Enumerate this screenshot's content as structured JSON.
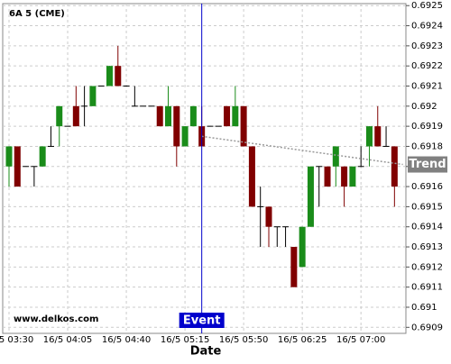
{
  "chart_data": {
    "type": "candlestick",
    "title": "6A 5 (CME)",
    "watermark": "www.delkos.com",
    "x_label": "Date",
    "categories": [
      "16/5 03:30",
      null,
      null,
      null,
      null,
      null,
      null,
      "16/5 04:05",
      null,
      null,
      null,
      null,
      null,
      null,
      "16/5 04:40",
      null,
      null,
      null,
      null,
      null,
      null,
      "16/5 05:15",
      null,
      null,
      null,
      null,
      null,
      null,
      "16/5 05:50",
      null,
      null,
      null,
      null,
      null,
      null,
      "16/5 06:25",
      null,
      null,
      null,
      null,
      null,
      null,
      "16/5 07:00",
      null,
      null,
      null,
      null
    ],
    "open": [
      0.6917,
      0.6918,
      0.6917,
      0.6917,
      0.6917,
      0.6918,
      0.6919,
      0.6919,
      0.692,
      0.692,
      0.692,
      0.6921,
      0.6921,
      0.6922,
      0.6921,
      0.692,
      0.692,
      0.692,
      0.692,
      0.6919,
      0.692,
      0.6918,
      0.6919,
      0.6919,
      0.6919,
      0.6919,
      0.692,
      0.6919,
      0.692,
      0.6918,
      0.6915,
      0.6915,
      0.6914,
      0.6914,
      0.6913,
      0.6912,
      0.6914,
      0.6917,
      0.6917,
      0.6917,
      0.6917,
      0.6916,
      0.6917,
      0.6918,
      0.6919,
      0.6918,
      0.6918
    ],
    "high": [
      0.6918,
      0.6918,
      0.6917,
      0.6917,
      0.6918,
      0.6919,
      0.692,
      0.6919,
      0.6921,
      0.6921,
      0.6921,
      0.6921,
      0.6922,
      0.6923,
      0.6921,
      0.6921,
      0.692,
      0.692,
      0.692,
      0.6921,
      0.692,
      0.6919,
      0.692,
      0.692,
      0.6919,
      0.6919,
      0.692,
      0.6921,
      0.692,
      0.6918,
      0.6916,
      0.6915,
      0.6914,
      0.6914,
      0.6913,
      0.6914,
      0.6917,
      0.6917,
      0.6917,
      0.6918,
      0.6917,
      0.6917,
      0.6918,
      0.6919,
      0.692,
      0.6919,
      0.6918
    ],
    "low": [
      0.6916,
      0.6916,
      0.6917,
      0.6916,
      0.6917,
      0.6918,
      0.6918,
      0.6919,
      0.6919,
      0.6919,
      0.692,
      0.6921,
      0.6921,
      0.6921,
      0.6921,
      0.692,
      0.692,
      0.692,
      0.6919,
      0.6919,
      0.6917,
      0.6918,
      0.6919,
      0.6918,
      0.6919,
      0.6919,
      0.6919,
      0.6919,
      0.6918,
      0.6915,
      0.6913,
      0.6913,
      0.6913,
      0.6913,
      0.6911,
      0.6912,
      0.6914,
      0.6915,
      0.6916,
      0.6916,
      0.6915,
      0.6916,
      0.6917,
      0.6917,
      0.6918,
      0.6918,
      0.6915
    ],
    "close": [
      0.6918,
      0.6916,
      0.6917,
      0.6917,
      0.6918,
      0.6918,
      0.692,
      0.6919,
      0.6919,
      0.692,
      0.6921,
      0.6921,
      0.6922,
      0.6921,
      0.6921,
      0.692,
      0.692,
      0.692,
      0.6919,
      0.692,
      0.6918,
      0.6919,
      0.692,
      0.6918,
      0.6919,
      0.6919,
      0.6919,
      0.692,
      0.6918,
      0.6915,
      0.6915,
      0.6914,
      0.6914,
      0.6914,
      0.6911,
      0.6914,
      0.6917,
      0.6917,
      0.6916,
      0.6918,
      0.6916,
      0.6917,
      0.6917,
      0.6919,
      0.6918,
      0.6918,
      0.6916
    ],
    "up_color": "#1a8c1a",
    "down_color": "#800000",
    "ylim": [
      0.69087,
      0.69251
    ],
    "yticks": [
      0.6909,
      0.691,
      0.6911,
      0.6912,
      0.6913,
      0.6914,
      0.6915,
      0.6916,
      0.6917,
      0.6918,
      0.6919,
      0.692,
      0.6921,
      0.6922,
      0.6923,
      0.6924,
      0.6925
    ],
    "grid": true,
    "event": {
      "label": "Event",
      "x": 23,
      "color": "#0000cc"
    },
    "trend": {
      "label": "Trend",
      "x": [
        23,
        47
      ],
      "values": [
        0.69185,
        0.69171
      ],
      "color": "#999999"
    }
  }
}
